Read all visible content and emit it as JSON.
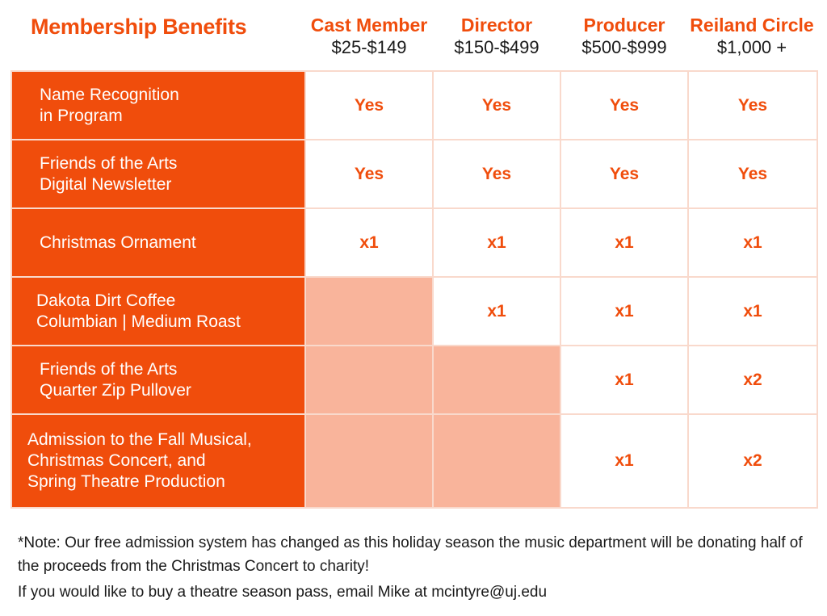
{
  "title": "Membership Benefits",
  "tiers": [
    {
      "name": "Cast Member",
      "price": "$25-$149"
    },
    {
      "name": "Director",
      "price": "$150-$499"
    },
    {
      "name": "Producer",
      "price": "$500-$999"
    },
    {
      "name": "Reiland Circle",
      "price": "$1,000 +"
    }
  ],
  "rows": [
    {
      "lines": [
        "Name Recognition",
        "in Program"
      ],
      "values": [
        "Yes",
        "Yes",
        "Yes",
        "Yes"
      ]
    },
    {
      "lines": [
        "Friends of the Arts",
        "Digital Newsletter"
      ],
      "values": [
        "Yes",
        "Yes",
        "Yes",
        "Yes"
      ]
    },
    {
      "lines": [
        "Christmas Ornament"
      ],
      "values": [
        "x1",
        "x1",
        "x1",
        "x1"
      ]
    },
    {
      "lines": [
        "Dakota Dirt Coffee",
        "Columbian | Medium Roast"
      ],
      "values": [
        "",
        "x1",
        "x1",
        "x1"
      ]
    },
    {
      "lines": [
        "Friends of the Arts",
        "Quarter Zip Pullover"
      ],
      "values": [
        "",
        "",
        "x1",
        "x2"
      ]
    },
    {
      "lines": [
        "Admission to the Fall Musical,",
        "Christmas Concert, and",
        "Spring Theatre Production"
      ],
      "values": [
        "",
        "",
        "x1",
        "x2"
      ]
    }
  ],
  "footer": {
    "note": "*Note: Our free admission system has changed as this holiday season the music department will be donating half of the proceeds from the Christmas Concert to charity!",
    "pass": "If you would like to buy a theatre season pass, email Mike at mcintyre@uj.edu"
  },
  "colors": {
    "accent": "#f04d0c",
    "empty_cell": "#f9b49b",
    "grid_line": "#f9d9cc"
  }
}
